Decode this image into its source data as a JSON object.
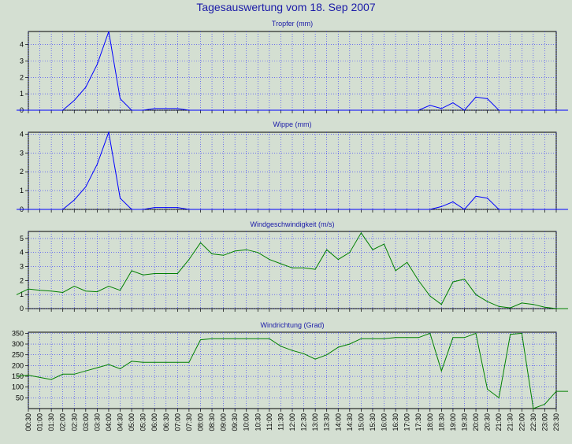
{
  "title": "Tagesauswertung vom 18. Sep 2007",
  "x_labels": [
    "00:30",
    "01:00",
    "01:30",
    "02:00",
    "02:30",
    "03:00",
    "03:30",
    "04:00",
    "04:30",
    "05:00",
    "05:30",
    "06:00",
    "06:30",
    "07:00",
    "07:30",
    "08:00",
    "08:30",
    "09:00",
    "09:30",
    "10:00",
    "10:30",
    "11:00",
    "11:30",
    "12:00",
    "12:30",
    "13:00",
    "13:30",
    "14:00",
    "14:30",
    "15:00",
    "15:30",
    "16:00",
    "16:30",
    "17:00",
    "17:30",
    "18:00",
    "18:30",
    "19:00",
    "19:30",
    "20:00",
    "20:30",
    "21:00",
    "21:30",
    "22:00",
    "22:30",
    "23:00",
    "23:30"
  ],
  "colors": {
    "background": "#d4dfd2",
    "grid": "#2b2bff",
    "blue_series": "#0000ff",
    "green_series": "#008000",
    "title": "#1a1aa8",
    "panel_title": "#1a1aa8"
  },
  "chart_data": [
    {
      "type": "line",
      "title": "Tropfer (mm)",
      "x_range": [
        0,
        24
      ],
      "ylim": [
        0,
        4.8
      ],
      "yticks": [
        0,
        1,
        2,
        3,
        4
      ],
      "grid": true,
      "x": [
        0,
        0.5,
        1,
        1.5,
        2,
        2.5,
        3,
        3.5,
        4,
        4.5,
        5,
        5.5,
        6,
        6.5,
        7,
        7.5,
        8,
        8.5,
        9,
        9.5,
        10,
        10.5,
        11,
        11.5,
        12,
        12.5,
        13,
        13.5,
        14,
        14.5,
        15,
        15.5,
        16,
        16.5,
        17,
        17.5,
        18,
        18.5,
        19,
        19.5,
        20,
        20.5,
        21,
        21.5,
        22,
        22.5,
        23,
        23.5,
        24
      ],
      "series": [
        {
          "color": "#0000ff",
          "values": [
            0,
            0,
            0,
            0,
            0,
            0.6,
            1.4,
            2.8,
            4.8,
            0.7,
            0,
            0,
            0.1,
            0.1,
            0.1,
            0,
            0,
            0,
            0,
            0,
            0,
            0,
            0,
            0,
            0,
            0,
            0,
            0,
            0,
            0,
            0,
            0,
            0,
            0,
            0,
            0,
            0.3,
            0.1,
            0.45,
            0,
            0.8,
            0.7,
            0,
            0,
            0,
            0,
            0,
            0,
            0
          ]
        }
      ]
    },
    {
      "type": "line",
      "title": "Wippe (mm)",
      "x_range": [
        0,
        24
      ],
      "ylim": [
        0,
        4.1
      ],
      "yticks": [
        0,
        1,
        2,
        3,
        4
      ],
      "grid": true,
      "x": [
        0,
        0.5,
        1,
        1.5,
        2,
        2.5,
        3,
        3.5,
        4,
        4.5,
        5,
        5.5,
        6,
        6.5,
        7,
        7.5,
        8,
        8.5,
        9,
        9.5,
        10,
        10.5,
        11,
        11.5,
        12,
        12.5,
        13,
        13.5,
        14,
        14.5,
        15,
        15.5,
        16,
        16.5,
        17,
        17.5,
        18,
        18.5,
        19,
        19.5,
        20,
        20.5,
        21,
        21.5,
        22,
        22.5,
        23,
        23.5,
        24
      ],
      "series": [
        {
          "color": "#0000ff",
          "values": [
            0,
            0,
            0,
            0,
            0,
            0.5,
            1.2,
            2.4,
            4.1,
            0.6,
            0,
            0,
            0.1,
            0.1,
            0.1,
            0,
            0,
            0,
            0,
            0,
            0,
            0,
            0,
            0,
            0,
            0,
            0,
            0,
            0,
            0,
            0,
            0,
            0,
            0,
            0,
            0,
            0,
            0.15,
            0.4,
            0,
            0.7,
            0.6,
            0,
            0,
            0,
            0,
            0,
            0,
            0
          ]
        }
      ]
    },
    {
      "type": "line",
      "title": "Windgeschwindigkeit (m/s)",
      "x_range": [
        0,
        24
      ],
      "ylim": [
        0,
        5.5
      ],
      "yticks": [
        0,
        1,
        2,
        3,
        4,
        5
      ],
      "grid": true,
      "x": [
        0,
        0.5,
        1,
        1.5,
        2,
        2.5,
        3,
        3.5,
        4,
        4.5,
        5,
        5.5,
        6,
        6.5,
        7,
        7.5,
        8,
        8.5,
        9,
        9.5,
        10,
        10.5,
        11,
        11.5,
        12,
        12.5,
        13,
        13.5,
        14,
        14.5,
        15,
        15.5,
        16,
        16.5,
        17,
        17.5,
        18,
        18.5,
        19,
        19.5,
        20,
        20.5,
        21,
        21.5,
        22,
        22.5,
        23,
        23.5,
        24
      ],
      "series": [
        {
          "color": "#008000",
          "values": [
            1.0,
            1.4,
            1.3,
            1.25,
            1.15,
            1.6,
            1.25,
            1.2,
            1.6,
            1.3,
            2.7,
            2.4,
            2.5,
            2.5,
            2.5,
            3.5,
            4.7,
            3.9,
            3.8,
            4.1,
            4.2,
            4.0,
            3.5,
            3.2,
            2.9,
            2.9,
            2.8,
            4.2,
            3.5,
            4.0,
            5.4,
            4.2,
            4.6,
            2.7,
            3.3,
            2.0,
            0.9,
            0.3,
            1.9,
            2.1,
            1.0,
            0.5,
            0.15,
            0.05,
            0.4,
            0.3,
            0.1,
            0,
            0
          ]
        }
      ]
    },
    {
      "type": "line",
      "title": "Windrichtung (Grad)",
      "x_range": [
        0,
        24
      ],
      "ylim": [
        0,
        355
      ],
      "yticks": [
        50,
        100,
        150,
        200,
        250,
        300,
        350
      ],
      "grid": true,
      "x": [
        0,
        0.5,
        1,
        1.5,
        2,
        2.5,
        3,
        3.5,
        4,
        4.5,
        5,
        5.5,
        6,
        6.5,
        7,
        7.5,
        8,
        8.5,
        9,
        9.5,
        10,
        10.5,
        11,
        11.5,
        12,
        12.5,
        13,
        13.5,
        14,
        14.5,
        15,
        15.5,
        16,
        16.5,
        17,
        17.5,
        18,
        18.5,
        19,
        19.5,
        20,
        20.5,
        21,
        21.5,
        22,
        22.5,
        23,
        23.5,
        24
      ],
      "series": [
        {
          "color": "#008000",
          "values": [
            150,
            155,
            145,
            135,
            160,
            160,
            175,
            190,
            205,
            185,
            220,
            215,
            215,
            215,
            215,
            215,
            320,
            325,
            325,
            325,
            325,
            325,
            325,
            290,
            270,
            255,
            230,
            250,
            285,
            300,
            325,
            325,
            325,
            330,
            330,
            330,
            350,
            175,
            330,
            330,
            350,
            90,
            50,
            345,
            350,
            0,
            20,
            80,
            80
          ]
        }
      ]
    }
  ]
}
